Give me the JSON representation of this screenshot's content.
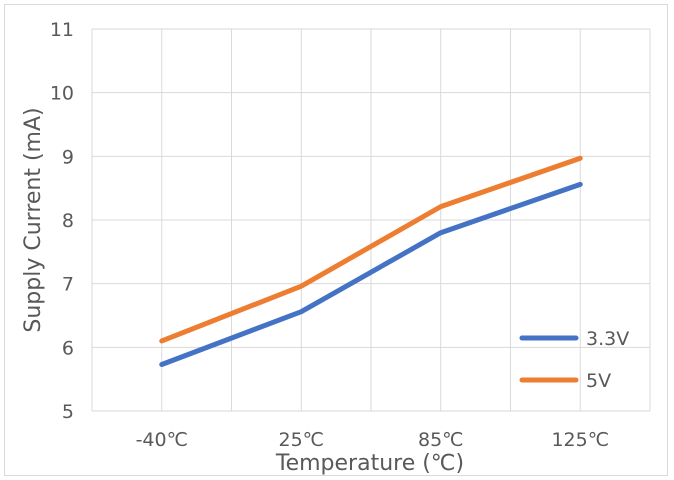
{
  "chart_data": {
    "type": "line",
    "categories": [
      "-40℃",
      "25℃",
      "85℃",
      "125℃"
    ],
    "series": [
      {
        "name": "3.3V",
        "values": [
          5.73,
          6.56,
          7.8,
          8.56
        ],
        "color": "#4472c4"
      },
      {
        "name": "5V",
        "values": [
          6.1,
          6.96,
          8.21,
          8.97
        ],
        "color": "#ed7d31"
      }
    ],
    "xlabel": "Temperature (℃)",
    "ylabel": "Supply Current (mA)",
    "ylim": [
      5,
      11
    ],
    "yticks": [
      "5",
      "6",
      "7",
      "8",
      "9",
      "10",
      "11"
    ],
    "grid": true,
    "grid_color": "#d9d9d9",
    "legend_position": "bottom-right"
  }
}
